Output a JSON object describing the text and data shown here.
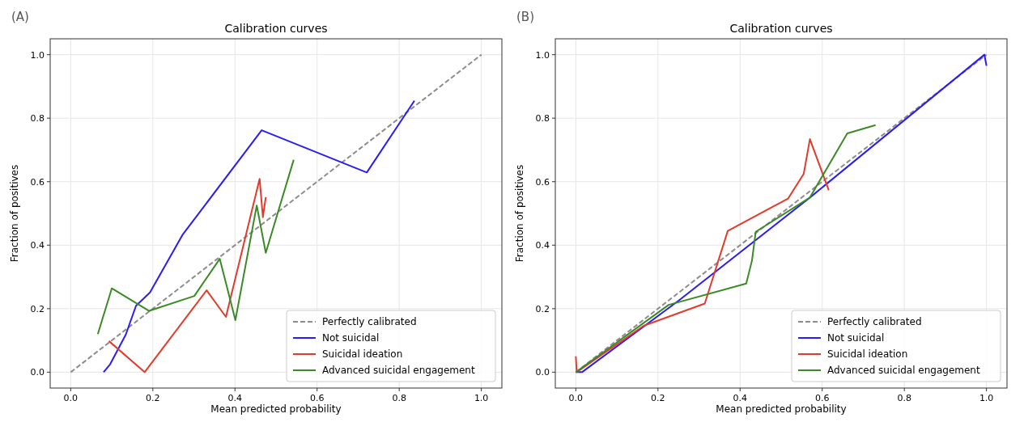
{
  "chart_data": [
    {
      "type": "line",
      "title": "Calibration curves",
      "xlabel": "Mean predicted probability",
      "ylabel": "Fraction of positives",
      "annotations": [
        "(A)"
      ],
      "xlim": [
        -0.05,
        1.05
      ],
      "ylim": [
        -0.05,
        1.05
      ],
      "xticks": [
        {
          "value": 0,
          "label": "0.0"
        },
        {
          "value": 0.2,
          "label": "0.2"
        },
        {
          "value": 0.4,
          "label": "0.4"
        },
        {
          "value": 0.6,
          "label": "0.6"
        },
        {
          "value": 0.8,
          "label": "0.8"
        },
        {
          "value": 1,
          "label": "1.0"
        }
      ],
      "yticks": [
        {
          "value": 0,
          "label": "0.0"
        },
        {
          "value": 0.2,
          "label": "0.2"
        },
        {
          "value": 0.4,
          "label": "0.4"
        },
        {
          "value": 0.6,
          "label": "0.6"
        },
        {
          "value": 0.8,
          "label": "0.8"
        },
        {
          "value": 1,
          "label": "1.0"
        }
      ],
      "grid": true,
      "legend": "bottom right",
      "series": [
        {
          "name": "Perfectly calibrated",
          "color": "#8c8c8c",
          "line_style": "dashed",
          "x": [
            0,
            1
          ],
          "values": [
            0,
            1
          ]
        },
        {
          "name": "Not suicidal",
          "color": "#2b1cf5",
          "x": [
            0.08,
            0.096,
            0.134,
            0.159,
            0.193,
            0.272,
            0.465,
            0.721,
            0.837
          ],
          "values": [
            0,
            0.025,
            0.118,
            0.209,
            0.251,
            0.432,
            0.762,
            0.629,
            0.855
          ]
        },
        {
          "name": "Suicidal ideation",
          "color": "#e23b2c",
          "x": [
            0.093,
            0.18,
            0.331,
            0.378,
            0.46,
            0.468,
            0.475
          ],
          "values": [
            0.098,
            0,
            0.258,
            0.174,
            0.609,
            0.488,
            0.551
          ]
        },
        {
          "name": "Advanced suicidal engagement",
          "color": "#3a8a25",
          "x": [
            0.066,
            0.1,
            0.191,
            0.301,
            0.363,
            0.401,
            0.453,
            0.475,
            0.543
          ],
          "values": [
            0.12,
            0.264,
            0.193,
            0.24,
            0.357,
            0.164,
            0.525,
            0.376,
            0.669
          ]
        }
      ]
    },
    {
      "type": "line",
      "title": "Calibration curves",
      "xlabel": "Mean predicted probability",
      "ylabel": "Fraction of positives",
      "annotations": [
        "(B)"
      ],
      "xlim": [
        -0.05,
        1.05
      ],
      "ylim": [
        -0.05,
        1.05
      ],
      "xticks": [
        {
          "value": 0,
          "label": "0.0"
        },
        {
          "value": 0.2,
          "label": "0.2"
        },
        {
          "value": 0.4,
          "label": "0.4"
        },
        {
          "value": 0.6,
          "label": "0.6"
        },
        {
          "value": 0.8,
          "label": "0.8"
        },
        {
          "value": 1,
          "label": "1.0"
        }
      ],
      "yticks": [
        {
          "value": 0,
          "label": "0.0"
        },
        {
          "value": 0.2,
          "label": "0.2"
        },
        {
          "value": 0.4,
          "label": "0.4"
        },
        {
          "value": 0.6,
          "label": "0.6"
        },
        {
          "value": 0.8,
          "label": "0.8"
        },
        {
          "value": 1,
          "label": "1.0"
        }
      ],
      "grid": true,
      "legend": "bottom right",
      "series": [
        {
          "name": "Perfectly calibrated",
          "color": "#8c8c8c",
          "line_style": "dashed",
          "x": [
            0,
            1
          ],
          "values": [
            0,
            1
          ]
        },
        {
          "name": "Not suicidal",
          "color": "#2b1cf5",
          "x": [
            0,
            0.015,
            0.25,
            0.57,
            0.995,
            1
          ],
          "values": [
            0,
            0,
            0.225,
            0.55,
            1,
            0.965
          ]
        },
        {
          "name": "Suicidal ideation",
          "color": "#e23b2c",
          "x": [
            0,
            0.002,
            0.165,
            0.314,
            0.37,
            0.517,
            0.555,
            0.57,
            0.616
          ],
          "values": [
            0.05,
            0,
            0.146,
            0.216,
            0.445,
            0.547,
            0.625,
            0.734,
            0.573
          ]
        },
        {
          "name": "Advanced suicidal engagement",
          "color": "#3a8a25",
          "x": [
            0,
            0.226,
            0.415,
            0.429,
            0.438,
            0.57,
            0.661,
            0.73
          ],
          "values": [
            0,
            0.212,
            0.279,
            0.352,
            0.442,
            0.55,
            0.752,
            0.778
          ]
        }
      ]
    }
  ]
}
